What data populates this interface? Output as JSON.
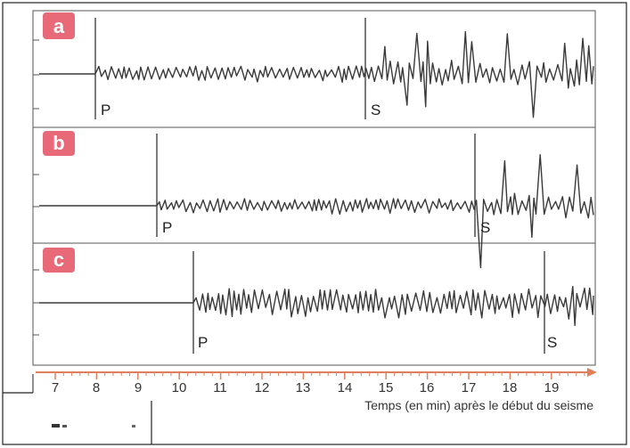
{
  "colors": {
    "trace": "#3a3a3a",
    "panel_badge": "#e86a78",
    "axis": "#e0805a",
    "frame": "#222222"
  },
  "axis": {
    "ticks": [
      "7",
      "8",
      "9",
      "10",
      "11",
      "12",
      "13",
      "14",
      "15",
      "16",
      "17",
      "18",
      "19"
    ],
    "caption": "Temps (en min) après le début du seisme",
    "min": 7,
    "max": 19
  },
  "panels": [
    {
      "label": "a",
      "p_label": "P",
      "s_label": "S",
      "p_time": 8.0,
      "s_time": 14.55
    },
    {
      "label": "b",
      "p_label": "P",
      "s_label": "S",
      "p_time": 9.45,
      "s_time": 17.1
    },
    {
      "label": "c",
      "p_label": "P",
      "s_label": "S",
      "p_time": 10.35,
      "s_time": 18.75
    }
  ]
}
